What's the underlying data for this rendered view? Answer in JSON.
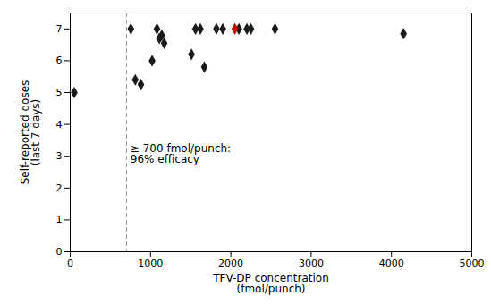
{
  "chart_data": {
    "type": "scatter",
    "xlabel": "TFV-DP concentration\n(fmol/punch)",
    "ylabel": "Self-reported doses\n(last 7 days)",
    "series": [
      {
        "color": "#1a1a1a",
        "marker": "diamond",
        "x": [
          50,
          755,
          810,
          880,
          1020,
          1080,
          1110,
          1140,
          1170,
          1510,
          1560,
          1620,
          1670,
          1820,
          1900,
          2100,
          2200,
          2250,
          2550,
          4150
        ],
        "values": [
          5,
          7,
          5.4,
          5.25,
          6.0,
          7,
          6.7,
          6.8,
          6.55,
          6.2,
          7,
          7,
          5.8,
          7,
          7,
          7,
          7,
          7,
          7,
          6.85
        ]
      },
      {
        "color": "#cc0000",
        "marker": "diamond",
        "x": [
          2050
        ],
        "values": [
          7
        ]
      }
    ],
    "vline": {
      "x": 700,
      "color": "#999999",
      "line_style": "dashed"
    },
    "annotation": {
      "text": "≥ 700 fmol/punch:\n96% efficacy",
      "x": 750,
      "y": 2.8
    },
    "xlim": [
      0,
      5000
    ],
    "ylim": [
      0,
      7.5
    ],
    "xticks": [
      0,
      1000,
      2000,
      3000,
      4000,
      5000
    ],
    "yticks": [
      0,
      1,
      2,
      3,
      4,
      5,
      6,
      7
    ],
    "grid": false
  }
}
